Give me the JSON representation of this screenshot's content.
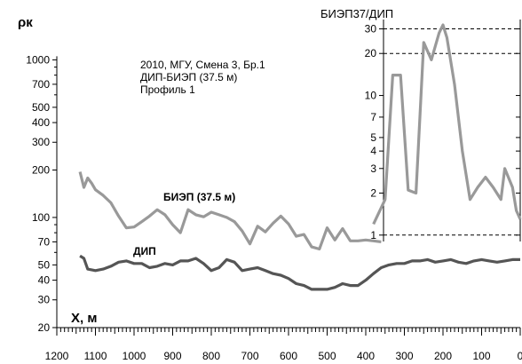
{
  "chart_data": {
    "type": "line",
    "ylabel": "ρк",
    "xlabel": "X, м",
    "annotation_lines": [
      "2010, МГУ, Смена 3, Бр.1",
      "ДИП-БИЭП (37.5 м)",
      "Профиль 1"
    ],
    "y_scale": "log",
    "ylim": [
      20,
      2000
    ],
    "xlim": [
      1200,
      0
    ],
    "x_reversed": true,
    "x_ticks": [
      1200,
      1100,
      1000,
      900,
      800,
      700,
      600,
      500,
      400,
      300,
      200,
      100,
      0
    ],
    "x_tick_labels": [
      "1200",
      "1100",
      "1000",
      "900",
      "800",
      "700",
      "600",
      "500",
      "400",
      "300",
      "200",
      "100",
      "0"
    ],
    "y_ticks": [
      20,
      30,
      40,
      50,
      70,
      100,
      200,
      300,
      400,
      500,
      700,
      1000
    ],
    "y_tick_labels": [
      "20",
      "30",
      "40",
      "50",
      "70",
      "100",
      "200",
      "300",
      "400",
      "500",
      "700",
      "1000"
    ],
    "series": [
      {
        "name": "БИЭП (37.5 м)",
        "color": "#999999",
        "x": [
          1140,
          1130,
          1120,
          1110,
          1100,
          1080,
          1060,
          1040,
          1020,
          1000,
          980,
          960,
          940,
          920,
          900,
          880,
          860,
          840,
          820,
          800,
          780,
          760,
          740,
          720,
          700,
          680,
          660,
          640,
          620,
          600,
          580,
          560,
          540,
          520,
          500,
          480,
          460,
          440,
          420,
          400,
          380,
          360
        ],
        "values": [
          195,
          155,
          178,
          165,
          150,
          138,
          124,
          102,
          86,
          87,
          94,
          102,
          112,
          104,
          90,
          80,
          112,
          104,
          101,
          108,
          104,
          100,
          94,
          82,
          68,
          88,
          81,
          92,
          102,
          91,
          76,
          78,
          65,
          63,
          86,
          72,
          85,
          71,
          71,
          72,
          71,
          70
        ]
      },
      {
        "name": "ДИП",
        "color": "#555555",
        "x": [
          1140,
          1130,
          1120,
          1100,
          1080,
          1060,
          1040,
          1020,
          1000,
          980,
          960,
          940,
          920,
          900,
          880,
          860,
          840,
          820,
          800,
          780,
          760,
          740,
          720,
          700,
          680,
          660,
          640,
          620,
          600,
          580,
          560,
          540,
          520,
          500,
          480,
          460,
          440,
          420,
          400,
          380,
          360,
          340,
          320,
          300,
          280,
          260,
          240,
          220,
          200,
          180,
          160,
          140,
          120,
          100,
          80,
          60,
          40,
          20,
          10,
          0
        ],
        "values": [
          57,
          55,
          47,
          46,
          47,
          49,
          52,
          53,
          51,
          51,
          48,
          49,
          51,
          50,
          53,
          53,
          55,
          51,
          46,
          48,
          54,
          52,
          46,
          47,
          48,
          46,
          44,
          43,
          41,
          38,
          37,
          35,
          35,
          35,
          36,
          38,
          37,
          37,
          40,
          44,
          48,
          50,
          51,
          51,
          53,
          53,
          54,
          52,
          53,
          54,
          52,
          51,
          53,
          54,
          53,
          52,
          53,
          54,
          54,
          54
        ]
      }
    ],
    "inset": {
      "title": "БИЭП37/ДИП",
      "y_scale": "log",
      "ylim": [
        0.9,
        35
      ],
      "y_ticks": [
        1,
        2,
        3,
        4,
        5,
        7,
        10,
        20,
        30
      ],
      "y_tick_labels": [
        "1",
        "2",
        "3",
        "4",
        "5",
        "7",
        "10",
        "20",
        "30"
      ],
      "right_ticks": [
        1,
        2,
        3,
        4,
        5,
        7,
        10,
        20,
        30
      ],
      "dashed_reference_lines": [
        1,
        20,
        30
      ],
      "series": {
        "name": "БИЭП37/ДИП",
        "color": "#999999",
        "x": [
          380,
          350,
          330,
          310,
          290,
          270,
          250,
          230,
          210,
          200,
          190,
          170,
          150,
          130,
          110,
          90,
          70,
          50,
          40,
          20,
          10,
          0
        ],
        "values": [
          1.2,
          1.8,
          14,
          14,
          2.1,
          2.0,
          24,
          18,
          28,
          32,
          26,
          12,
          4,
          1.8,
          2.2,
          2.6,
          2.2,
          1.8,
          3,
          2.2,
          1.5,
          1.3
        ]
      }
    }
  }
}
